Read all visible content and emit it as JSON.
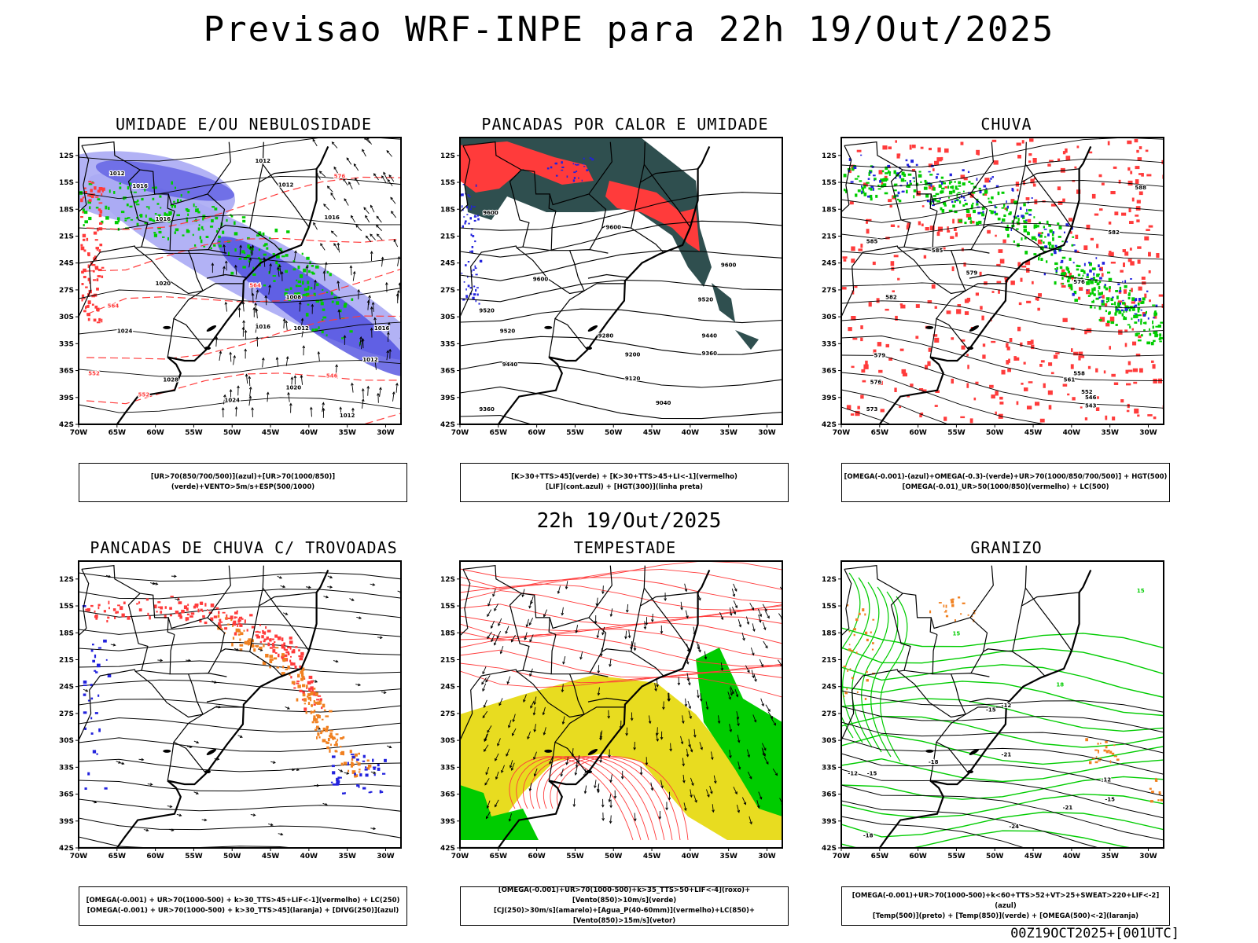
{
  "header": {
    "title": "Previsao WRF-INPE  para 22h 19/Out/2025",
    "subtitle": "22h 19/Out/2025",
    "stamp": "00Z19OCT2025+[001UTC]"
  },
  "colors": {
    "green": "#00cc00",
    "red": "#ff3b3b",
    "blue": "#2222dd",
    "lavender": "#aaaaf4",
    "purple": "#4444dd",
    "teal": "#2f4f4f",
    "orange": "#f08020",
    "yellow": "#e8dc20"
  },
  "axes": {
    "lat_labels": [
      "12S",
      "15S",
      "18S",
      "21S",
      "24S",
      "27S",
      "30S",
      "33S",
      "36S",
      "39S",
      "42S"
    ],
    "lon_labels": [
      "70W",
      "65W",
      "60W",
      "55W",
      "50W",
      "45W",
      "40W",
      "35W",
      "30W"
    ]
  },
  "chart_data": [
    {
      "type": "heatmap",
      "title": "UMIDADE E/OU NEBULOSIDADE",
      "legend_lines": [
        "[UR>70(850/700/500)](azul)+[UR>70(1000/850)](verde)+VENTO>5m/s+ESP(500/1000)"
      ],
      "contour_labels": [
        {
          "text": "1012",
          "lon": -46,
          "lat": -12.8,
          "color": "#000"
        },
        {
          "text": "1012",
          "lon": -65,
          "lat": -14.2,
          "color": "#000"
        },
        {
          "text": "1016",
          "lon": -62,
          "lat": -15.6,
          "color": "#000"
        },
        {
          "text": "1012",
          "lon": -43,
          "lat": -15.5,
          "color": "#000"
        },
        {
          "text": "1016",
          "lon": -59,
          "lat": -19.3,
          "color": "#000"
        },
        {
          "text": "1016",
          "lon": -37,
          "lat": -19.1,
          "color": "#000"
        },
        {
          "text": "1020",
          "lon": -59,
          "lat": -26.5,
          "color": "#000"
        },
        {
          "text": "1024",
          "lon": -64,
          "lat": -31.8,
          "color": "#000"
        },
        {
          "text": "1028",
          "lon": -58,
          "lat": -37.2,
          "color": "#000"
        },
        {
          "text": "1024",
          "lon": -50,
          "lat": -39.5,
          "color": "#000"
        },
        {
          "text": "1008",
          "lon": -42,
          "lat": -28,
          "color": "#000"
        },
        {
          "text": "1012",
          "lon": -41,
          "lat": -31.5,
          "color": "#000"
        },
        {
          "text": "1016",
          "lon": -46,
          "lat": -31.3,
          "color": "#000"
        },
        {
          "text": "1020",
          "lon": -42,
          "lat": -38.1,
          "color": "#000"
        },
        {
          "text": "1012",
          "lon": -32,
          "lat": -35,
          "color": "#000"
        },
        {
          "text": "1012",
          "lon": -35,
          "lat": -41.2,
          "color": "#000"
        },
        {
          "text": "1016",
          "lon": -30.5,
          "lat": -31.5,
          "color": "#000"
        },
        {
          "text": "576",
          "lon": -36,
          "lat": -14.5,
          "color": "#ff3b3b"
        },
        {
          "text": "564",
          "lon": -65.5,
          "lat": -29,
          "color": "#ff3b3b"
        },
        {
          "text": "552",
          "lon": -68,
          "lat": -36.5,
          "color": "#ff3b3b"
        },
        {
          "text": "564",
          "lon": -47,
          "lat": -26.7,
          "color": "#ff3b3b"
        },
        {
          "text": "546",
          "lon": -37,
          "lat": -36.8,
          "color": "#ff3b3b"
        },
        {
          "text": "552",
          "lon": -61.5,
          "lat": -38.9,
          "color": "#ff3b3b"
        }
      ]
    },
    {
      "type": "heatmap",
      "title": "PANCADAS POR CALOR E UMIDADE",
      "legend_lines": [
        "[K>30+TTS>45](verde) + [K>30+TTS>45+LI<-1](vermelho)",
        "[LIF](cont.azul) + [HGT(300)](linha preta)"
      ],
      "contour_labels": [
        {
          "text": "9600",
          "lon": -66,
          "lat": -18.6,
          "color": "#000"
        },
        {
          "text": "9600",
          "lon": -50,
          "lat": -20.2,
          "color": "#000"
        },
        {
          "text": "9600",
          "lon": -59.5,
          "lat": -26,
          "color": "#000"
        },
        {
          "text": "9600",
          "lon": -35,
          "lat": -24.4,
          "color": "#000"
        },
        {
          "text": "9520",
          "lon": -66.5,
          "lat": -29.5,
          "color": "#000"
        },
        {
          "text": "9520",
          "lon": -38,
          "lat": -28.3,
          "color": "#000"
        },
        {
          "text": "9520",
          "lon": -63.8,
          "lat": -31.8,
          "color": "#000"
        },
        {
          "text": "9440",
          "lon": -63.5,
          "lat": -35.5,
          "color": "#000"
        },
        {
          "text": "9440",
          "lon": -37.5,
          "lat": -32.3,
          "color": "#000"
        },
        {
          "text": "9360",
          "lon": -66.5,
          "lat": -40.5,
          "color": "#000"
        },
        {
          "text": "9360",
          "lon": -37.5,
          "lat": -34.3,
          "color": "#000"
        },
        {
          "text": "9280",
          "lon": -51,
          "lat": -32.3,
          "color": "#000"
        },
        {
          "text": "9200",
          "lon": -47.5,
          "lat": -34.4,
          "color": "#000"
        },
        {
          "text": "9120",
          "lon": -47.5,
          "lat": -37.1,
          "color": "#000"
        },
        {
          "text": "9040",
          "lon": -43.5,
          "lat": -39.8,
          "color": "#000"
        }
      ]
    },
    {
      "type": "heatmap",
      "title": "CHUVA",
      "legend_lines": [
        "[OMEGA(-0.001)-(azul)+OMEGA(-0.3)-(verde)+UR>70(1000/850/700/500)] + HGT(500)",
        "[OMEGA(-0.01)_UR>50(1000/850)(vermelho) + LC(500)"
      ],
      "contour_labels": [
        {
          "text": "588",
          "lon": -31,
          "lat": -15.8,
          "color": "#000"
        },
        {
          "text": "582",
          "lon": -34.5,
          "lat": -20.8,
          "color": "#000"
        },
        {
          "text": "585",
          "lon": -66,
          "lat": -21.8,
          "color": "#000"
        },
        {
          "text": "585",
          "lon": -57.5,
          "lat": -22.8,
          "color": "#000"
        },
        {
          "text": "579",
          "lon": -53,
          "lat": -25.3,
          "color": "#000"
        },
        {
          "text": "576",
          "lon": -39,
          "lat": -26.3,
          "color": "#000"
        },
        {
          "text": "582",
          "lon": -63.5,
          "lat": -28,
          "color": "#000"
        },
        {
          "text": "579",
          "lon": -65,
          "lat": -34.5,
          "color": "#000"
        },
        {
          "text": "576",
          "lon": -65.5,
          "lat": -37.5,
          "color": "#000"
        },
        {
          "text": "573",
          "lon": -66,
          "lat": -40.5,
          "color": "#000"
        },
        {
          "text": "561",
          "lon": -40.3,
          "lat": -37.2,
          "color": "#000"
        },
        {
          "text": "558",
          "lon": -39,
          "lat": -36.5,
          "color": "#000"
        },
        {
          "text": "552",
          "lon": -38,
          "lat": -38.6,
          "color": "#000"
        },
        {
          "text": "546",
          "lon": -37.5,
          "lat": -39.2,
          "color": "#000"
        },
        {
          "text": "543",
          "lon": -37.5,
          "lat": -40.1,
          "color": "#000"
        }
      ]
    },
    {
      "type": "heatmap",
      "title": "PANCADAS DE CHUVA C/ TROVOADAS",
      "legend_lines": [
        "[OMEGA(-0.001) + UR>70(1000-500) + k>30_TTS>45+LIF<-1](vermelho) + LC(250)",
        "[OMEGA(-0.001) + UR>70(1000-500) + k>30_TTS>45](laranja) + [DIVG(250)](azul)"
      ],
      "contour_labels": []
    },
    {
      "type": "heatmap",
      "title": "TEMPESTADE",
      "legend_lines": [
        "[OMEGA(-0.001)+UR>70(1000-500)+k>35_TTS>50+LIF<-4](roxo)+[Vento(850)>10m/s](verde)",
        "[CJ(250)>30m/s](amarelo)+[Agua_P(40-60mm)](vermelho)+LC(850)+[Vento(850)>15m/s](vetor)"
      ],
      "contour_labels": []
    },
    {
      "type": "heatmap",
      "title": "GRANIZO",
      "legend_lines": [
        "[OMEGA(-0.001)+UR>70(1000-500)+k<60+TTS>52+VT>25+SWEAT>220+LIF<-2](azul)",
        "[Temp(500)](preto) + [Temp(850)](verde) + [OMEGA(500)<-2](laranja)"
      ],
      "contour_labels": [
        {
          "text": "-12",
          "lon": -48.5,
          "lat": -26.3,
          "color": "#000"
        },
        {
          "text": "-15",
          "lon": -50.5,
          "lat": -26.8,
          "color": "#000"
        },
        {
          "text": "-12",
          "lon": -68.5,
          "lat": -33.9,
          "color": "#000"
        },
        {
          "text": "-15",
          "lon": -66,
          "lat": -33.9,
          "color": "#000"
        },
        {
          "text": "-18",
          "lon": -58,
          "lat": -32.6,
          "color": "#000"
        },
        {
          "text": "-21",
          "lon": -48.5,
          "lat": -31.8,
          "color": "#000"
        },
        {
          "text": "-12",
          "lon": -35.5,
          "lat": -34.6,
          "color": "#000"
        },
        {
          "text": "-15",
          "lon": -35,
          "lat": -36.8,
          "color": "#000"
        },
        {
          "text": "-21",
          "lon": -40.5,
          "lat": -37.7,
          "color": "#000"
        },
        {
          "text": "-24",
          "lon": -47.5,
          "lat": -39.8,
          "color": "#000"
        },
        {
          "text": "-18",
          "lon": -66.5,
          "lat": -40.8,
          "color": "#000"
        },
        {
          "text": "15",
          "lon": -55,
          "lat": -18.3,
          "color": "#00cc00"
        },
        {
          "text": "18",
          "lon": -41.5,
          "lat": -24,
          "color": "#00cc00"
        },
        {
          "text": "15",
          "lon": -31,
          "lat": -13.5,
          "color": "#00cc00"
        }
      ]
    }
  ]
}
